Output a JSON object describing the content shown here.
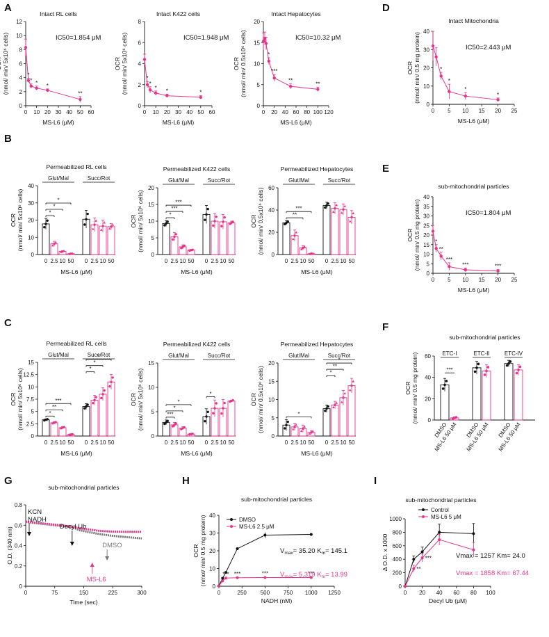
{
  "colors": {
    "pink": "#e8338b",
    "black": "#111111",
    "gray": "#777777"
  },
  "panel_letters": {
    "A": "A",
    "B": "B",
    "C": "C",
    "D": "D",
    "E": "E",
    "F": "F",
    "G": "G",
    "H": "H",
    "I": "I"
  },
  "chart_data": [
    {
      "id": "A1",
      "type": "line",
      "title": "Intact RL cells",
      "xlabel": "MS-L6 (μM)",
      "ylabel": [
        "OCR",
        "(nmol/ min/ 5x10⁶ cells)"
      ],
      "xlim": [
        0,
        60
      ],
      "ylim": [
        0,
        12
      ],
      "xticks": [
        0,
        10,
        20,
        30,
        40,
        50,
        60
      ],
      "yticks": [
        0,
        2,
        4,
        6,
        8,
        10,
        12
      ],
      "x": [
        0,
        2.5,
        5,
        10,
        20,
        50
      ],
      "y": [
        8.3,
        3.6,
        2.8,
        2.5,
        2.2,
        0.9
      ],
      "err": [
        1.2,
        0.3,
        0.3,
        0.3,
        0.2,
        0.4
      ],
      "stars": [
        "",
        "*",
        "*",
        "*",
        "*",
        "**"
      ],
      "annotation": "IC50=1.854 μM"
    },
    {
      "id": "A2",
      "type": "line",
      "title": "Intact K422 cells",
      "xlabel": "MS-L6 (μM)",
      "ylabel": [
        "OCR",
        "(nmol/ min/ 5x10⁶ cells)"
      ],
      "xlim": [
        0,
        60
      ],
      "ylim": [
        0,
        8
      ],
      "xticks": [
        0,
        10,
        20,
        30,
        40,
        50,
        60
      ],
      "yticks": [
        0,
        2,
        4,
        6,
        8
      ],
      "x": [
        0,
        2.5,
        5,
        10,
        20,
        50
      ],
      "y": [
        4.4,
        2.0,
        1.5,
        1.2,
        0.95,
        0.8
      ],
      "err": [
        0.5,
        0.3,
        0.3,
        0.2,
        0.15,
        0.15
      ],
      "stars": [
        "",
        "*",
        "*",
        "*",
        "*",
        "*"
      ],
      "annotation": "IC50=1.948 μM"
    },
    {
      "id": "A3",
      "type": "line",
      "title": "Intact Hepatocytes",
      "xlabel": "MS-L6 (μM)",
      "ylabel": [
        "OCR",
        "(nmol/ min/ 0.5x10⁶ cells)"
      ],
      "xlim": [
        0,
        120
      ],
      "ylim": [
        0,
        20
      ],
      "xticks": [
        0,
        20,
        40,
        60,
        80,
        100,
        120
      ],
      "yticks": [
        0,
        5,
        10,
        15,
        20
      ],
      "x": [
        0,
        2.5,
        5,
        10,
        20,
        50,
        100
      ],
      "y": [
        15.3,
        16.0,
        14.8,
        10.6,
        6.6,
        4.6,
        3.9
      ],
      "err": [
        2.0,
        1.5,
        1.5,
        0.8,
        0.8,
        0.6,
        0.5
      ],
      "stars": [
        "",
        "",
        "",
        "*",
        "***",
        "**",
        "**"
      ],
      "annotation": "IC50=10.32 μM"
    },
    {
      "id": "D",
      "type": "line",
      "title": "Intact Mitochondria",
      "xlabel": "MS-L6 (μM)",
      "ylabel": [
        "OCR",
        "(nmol/ min/ 0.5 mg protein)"
      ],
      "xlim": [
        0,
        25
      ],
      "ylim": [
        0,
        40
      ],
      "xticks": [
        0,
        5,
        10,
        15,
        20,
        25
      ],
      "yticks": [
        0,
        10,
        20,
        30,
        40
      ],
      "x": [
        0,
        1,
        2.5,
        5,
        10,
        20
      ],
      "y": [
        32,
        26,
        15.5,
        7,
        4.5,
        2.5
      ],
      "err": [
        8,
        5,
        2,
        4,
        2,
        1
      ],
      "stars": [
        "",
        "",
        "*",
        "*",
        "*",
        "*"
      ],
      "annotation": "IC50=2.443 μM"
    },
    {
      "id": "E",
      "type": "line",
      "title": "sub-mitochondrial particles",
      "xlabel": "MS-L6 (μM)",
      "ylabel": [
        "OCR",
        "(nmol/ min/ 0.5 mg protein)"
      ],
      "xlim": [
        0,
        25
      ],
      "ylim": [
        0,
        40
      ],
      "xticks": [
        0,
        5,
        10,
        15,
        20,
        25
      ],
      "yticks": [
        0,
        5,
        10,
        15,
        20,
        25,
        30,
        35,
        40
      ],
      "x": [
        0,
        1,
        2.5,
        5,
        10,
        20
      ],
      "y": [
        22,
        13,
        9,
        3.5,
        1.8,
        1.2
      ],
      "err": [
        3,
        2,
        2,
        2,
        1,
        0.8
      ],
      "stars": [
        "",
        "*",
        "**",
        "***",
        "***",
        "***"
      ],
      "annotation": "IC50=1.804 μM"
    },
    {
      "id": "B1",
      "type": "bar",
      "title": "Permeabilized RL cells",
      "xlabel": "MS-L6 (μM)",
      "ylabel": [
        "OCR",
        "(nmol/ min/ 5x10⁶ cells)"
      ],
      "ylim": [
        0,
        40
      ],
      "yticks": [
        0,
        10,
        20,
        30,
        40
      ],
      "categories": [
        "0",
        "2.5",
        "10",
        "50"
      ],
      "groups": [
        {
          "name": "Glut/Mal",
          "values": [
            17.8,
            6.2,
            1.8,
            0.5
          ],
          "err": [
            3.2,
            1.5,
            0.5,
            0.3
          ]
        },
        {
          "name": "Succ/Rot",
          "values": [
            20.5,
            17.3,
            16.5,
            16.2
          ],
          "err": [
            5.2,
            4,
            3.5,
            1.8
          ]
        }
      ],
      "brackets": [
        {
          "g": 0,
          "a": 0,
          "b": 1,
          "level": 0,
          "label": "*"
        },
        {
          "g": 0,
          "a": 0,
          "b": 2,
          "level": 1,
          "label": "*"
        },
        {
          "g": 0,
          "a": 0,
          "b": 3,
          "level": 2,
          "label": "*"
        }
      ]
    },
    {
      "id": "B2",
      "type": "bar",
      "title": "Permeabilized K422 cells",
      "xlabel": "MS-L6 (μM)",
      "ylabel": [
        "OCR",
        "(nmol/ min/ 5x10⁶ cells)"
      ],
      "ylim": [
        0,
        20
      ],
      "yticks": [
        0,
        5,
        10,
        15,
        20
      ],
      "categories": [
        "0",
        "2.5",
        "10",
        "50"
      ],
      "groups": [
        {
          "name": "Glut/Mal",
          "values": [
            9.3,
            5.3,
            2.3,
            1.3
          ],
          "err": [
            0.9,
            1.3,
            0.6,
            0.2
          ]
        },
        {
          "name": "Succ/Rot",
          "values": [
            12,
            10,
            9.8,
            9.5
          ],
          "err": [
            2.7,
            2.2,
            2.2,
            0.5
          ]
        }
      ],
      "brackets": [
        {
          "g": 0,
          "a": 0,
          "b": 1,
          "level": 0,
          "label": "*"
        },
        {
          "g": 0,
          "a": 0,
          "b": 2,
          "level": 1,
          "label": "***"
        },
        {
          "g": 0,
          "a": 0,
          "b": 3,
          "level": 2,
          "label": "***"
        }
      ]
    },
    {
      "id": "B3",
      "type": "bar",
      "title": "Permeabilized Hepatocytes",
      "xlabel": "MS-L6 (μM)",
      "ylabel": [
        "OCR",
        "(nmol/ min/ 0.5x10⁶ cells)"
      ],
      "ylim": [
        0,
        60
      ],
      "yticks": [
        0,
        20,
        40,
        60
      ],
      "categories": [
        "0",
        "2.5",
        "10",
        "50"
      ],
      "groups": [
        {
          "name": "Glut/Mal",
          "values": [
            28.5,
            17,
            6,
            0.8
          ],
          "err": [
            2,
            5,
            2,
            0.5
          ]
        },
        {
          "name": "Succ/Rot",
          "values": [
            44,
            41.5,
            40.5,
            33.5
          ],
          "err": [
            3,
            5,
            5,
            6
          ]
        }
      ],
      "brackets": [
        {
          "g": 0,
          "a": 0,
          "b": 2,
          "level": 0,
          "label": "**"
        },
        {
          "g": 0,
          "a": 0,
          "b": 3,
          "level": 1,
          "label": "***"
        }
      ]
    },
    {
      "id": "C1",
      "type": "bar",
      "title": "Permeabilized RL cells",
      "xlabel": "MS-L6 (μM)",
      "ylabel": [
        "OCR",
        "(nmol/ min/ 5x10⁶ cells)"
      ],
      "ylim": [
        0,
        15
      ],
      "yticks": [
        0,
        2.5,
        5,
        7.5,
        10,
        12.5,
        15
      ],
      "categories": [
        "0",
        "2.5",
        "10",
        "50"
      ],
      "groups": [
        {
          "name": "Glut/Mal",
          "values": [
            3.3,
            2.7,
            1.7,
            0.3
          ],
          "err": [
            0.2,
            0.2,
            0.2,
            0.1
          ]
        },
        {
          "name": "Succ/Rot",
          "values": [
            6,
            7.3,
            8.5,
            11
          ],
          "err": [
            0.6,
            1,
            1.3,
            1.5
          ]
        }
      ],
      "brackets": [
        {
          "g": 0,
          "a": 0,
          "b": 1,
          "level": 0,
          "label": "*"
        },
        {
          "g": 0,
          "a": 0,
          "b": 2,
          "level": 1,
          "label": "**"
        },
        {
          "g": 0,
          "a": 0,
          "b": 3,
          "level": 2,
          "label": "***"
        },
        {
          "g": 1,
          "a": 0,
          "b": 1,
          "level": 0,
          "label": "*"
        },
        {
          "g": 1,
          "a": 0,
          "b": 2,
          "level": 1,
          "label": "*"
        },
        {
          "g": 1,
          "a": 0,
          "b": 3,
          "level": 2,
          "label": "*"
        }
      ]
    },
    {
      "id": "C2",
      "type": "bar",
      "title": "Permeabilized K422 cells",
      "xlabel": "MS-L6 (μM)",
      "ylabel": [
        "OCR",
        "(nmol/ min/ 5x10⁶ cells)"
      ],
      "ylim": [
        0,
        15
      ],
      "yticks": [
        0,
        5,
        10,
        15
      ],
      "categories": [
        "0",
        "2.5",
        "10",
        "50"
      ],
      "groups": [
        {
          "name": "Glut/Mal",
          "values": [
            2.8,
            2.3,
            1.6,
            0.4
          ],
          "err": [
            0.5,
            0.5,
            0.3,
            0.1
          ]
        },
        {
          "name": "Succ/Rot",
          "values": [
            4,
            5.7,
            5.7,
            7.2
          ],
          "err": [
            1.6,
            1.7,
            1.8,
            0.2
          ]
        }
      ],
      "brackets": [
        {
          "g": 0,
          "a": 0,
          "b": 1,
          "level": 0,
          "label": "***"
        },
        {
          "g": 0,
          "a": 0,
          "b": 2,
          "level": 1,
          "label": "*"
        },
        {
          "g": 0,
          "a": 0,
          "b": 3,
          "level": 2,
          "label": "*"
        },
        {
          "g": 1,
          "a": 0,
          "b": 1,
          "level": 0,
          "label": "*"
        }
      ]
    },
    {
      "id": "C3",
      "type": "bar",
      "title": "Permeabilized Hepatocytes",
      "xlabel": "MS-L6 (μM)",
      "ylabel": [
        "OCR",
        "(nmol/ min/ 0.5x10⁶ cells)"
      ],
      "ylim": [
        0,
        20
      ],
      "yticks": [
        0,
        5,
        10,
        15,
        20
      ],
      "categories": [
        "0",
        "2.5",
        "10",
        "50"
      ],
      "groups": [
        {
          "name": "Glut/Mal",
          "values": [
            3,
            2.5,
            2,
            1
          ],
          "err": [
            1.5,
            1,
            1,
            0.5
          ]
        },
        {
          "name": "Succ/Rot",
          "values": [
            7.5,
            8.5,
            10.5,
            13.8
          ],
          "err": [
            1,
            1,
            2,
            2
          ]
        }
      ],
      "brackets": [
        {
          "g": 0,
          "a": 0,
          "b": 3,
          "level": 0,
          "label": "*"
        },
        {
          "g": 1,
          "a": 0,
          "b": 1,
          "level": 0,
          "label": "*"
        },
        {
          "g": 1,
          "a": 0,
          "b": 2,
          "level": 1,
          "label": "**"
        },
        {
          "g": 1,
          "a": 0,
          "b": 3,
          "level": 2,
          "label": "*"
        }
      ]
    },
    {
      "id": "F",
      "type": "bar",
      "title": "sub-mitochondrial particles",
      "xlabel": "",
      "ylabel": [
        "OCR",
        "(nmol/ min/ 0.5 mg protein)"
      ],
      "ylim": [
        0,
        60
      ],
      "yticks": [
        0,
        20,
        40,
        60
      ],
      "categories": [
        "DMSO",
        "MS-L6 50 μM"
      ],
      "groups": [
        {
          "name": "ETC-I",
          "values": [
            33,
            2
          ],
          "err": [
            6,
            1
          ],
          "bracket": "***"
        },
        {
          "name": "ETC-II",
          "values": [
            49,
            46
          ],
          "err": [
            6,
            6
          ]
        },
        {
          "name": "ETC-IV",
          "values": [
            53,
            47
          ],
          "err": [
            3,
            5
          ]
        }
      ]
    },
    {
      "id": "G",
      "type": "line",
      "title": "sub-mitochondrial particles",
      "xlabel": "Time (sec)",
      "ylabel": [
        "O.D. (340 nm)"
      ],
      "xlim": [
        0,
        300
      ],
      "ylim": [
        0,
        0.8
      ],
      "xticks": [
        0,
        75,
        150,
        225,
        300
      ],
      "yticks": [
        0,
        0.2,
        0.4,
        0.6,
        0.8
      ],
      "series": [
        {
          "name": "DMSO",
          "x": [
            0,
            25,
            50,
            75,
            100,
            120,
            140,
            160,
            180,
            200,
            220,
            240,
            260,
            280,
            300
          ],
          "y": [
            0.635,
            0.62,
            0.61,
            0.6,
            0.59,
            0.58,
            0.55,
            0.535,
            0.52,
            0.508,
            0.498,
            0.49,
            0.483,
            0.477,
            0.47
          ]
        },
        {
          "name": "MS-L6",
          "x": [
            0,
            25,
            50,
            75,
            100,
            120,
            140,
            160,
            180,
            190,
            200,
            210,
            220,
            240,
            260,
            280,
            300
          ],
          "y": [
            0.635,
            0.625,
            0.615,
            0.605,
            0.595,
            0.585,
            0.57,
            0.56,
            0.55,
            0.545,
            0.542,
            0.54,
            0.538,
            0.536,
            0.535,
            0.535,
            0.535
          ]
        }
      ],
      "annotations": {
        "kcn": [
          "KCN",
          "NADH"
        ],
        "decyl": "Decyl Ub",
        "dmso": "DMSO",
        "msl6": "MS-L6"
      }
    },
    {
      "id": "H",
      "type": "line",
      "title": "sub-mitochondrial particles",
      "xlabel": "NADH (nM)",
      "ylabel": [
        "OCR",
        "(nmol/ min/ 0.5 mg protein)"
      ],
      "xlim": [
        0,
        1250
      ],
      "ylim": [
        0,
        40
      ],
      "xticks": [
        0,
        250,
        500,
        750,
        1000,
        1250
      ],
      "yticks": [
        0,
        10,
        20,
        30,
        40
      ],
      "series": [
        {
          "name": "DMSO",
          "x": [
            0,
            40,
            75,
            200,
            500,
            1000
          ],
          "y": [
            0.2,
            4.5,
            7.8,
            21.2,
            28.8,
            29.2
          ],
          "err": [
            0,
            0.3,
            0.4,
            0.5,
            1.5,
            0.5
          ]
        },
        {
          "name": "MS-L6 2.5 μM",
          "x": [
            0,
            40,
            75,
            200,
            500,
            1000
          ],
          "y": [
            0.2,
            3,
            4.6,
            4.8,
            4.9,
            4.9
          ],
          "err": [
            0,
            0.2,
            0.3,
            0.3,
            0.3,
            0.3
          ],
          "stars": [
            "",
            "",
            "***",
            "***",
            "***",
            "***"
          ]
        }
      ],
      "legend": [
        "DMSO",
        "MS-L6 2.5 μM"
      ],
      "vmax_dmso": "V",
      "vmax_dmso_sub": "max",
      "vmax_dmso_val": "= 35.20  K",
      "km_dmso_sub": "m",
      "km_dmso_val": "= 145.1",
      "vmax_ms": "V",
      "vmax_ms_sub": "max",
      "vmax_ms_val": "= 5.319  K",
      "km_ms_sub": "m",
      "km_ms_val": "= 13.99"
    },
    {
      "id": "I",
      "type": "line",
      "title": "sub-mitochondrial particles",
      "xlabel": "Decyl Ub (μM)",
      "ylabel": [
        "Δ O.D. x 1000"
      ],
      "xlim": [
        0,
        100
      ],
      "ylim": [
        0,
        1000
      ],
      "xticks": [
        0,
        20,
        40,
        60,
        80,
        100
      ],
      "yticks": [
        0,
        200,
        400,
        600,
        800,
        1000
      ],
      "series": [
        {
          "name": "Control",
          "x": [
            0,
            10,
            20,
            40,
            80
          ],
          "y": [
            0,
            400,
            510,
            800,
            780
          ],
          "err": [
            0,
            50,
            70,
            120,
            150
          ]
        },
        {
          "name": "MS-L6 5 μM",
          "x": [
            0,
            10,
            20,
            40,
            80
          ],
          "y": [
            0,
            260,
            420,
            690,
            540
          ],
          "err": [
            0,
            50,
            60,
            80,
            110
          ],
          "stars": [
            "",
            "**",
            "***",
            "",
            ""
          ]
        }
      ],
      "legend": [
        "Control",
        "MS-L6 5 μM"
      ],
      "fit_control": "Vmax = 1257   Km= 24.0",
      "fit_ms": "Vmax = 1858   Km= 67.44"
    }
  ]
}
